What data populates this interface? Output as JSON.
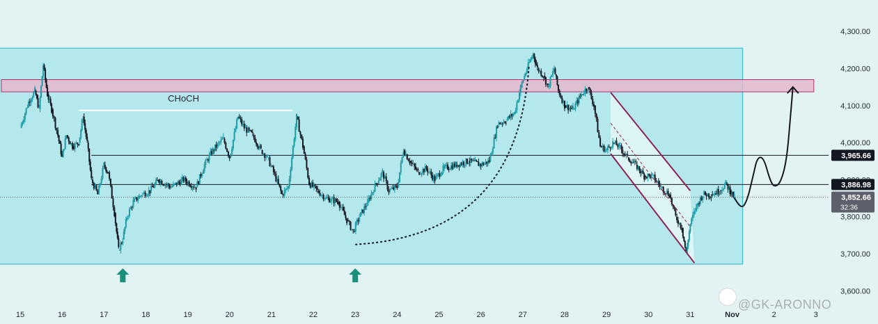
{
  "chart_data": {
    "type": "candlestick",
    "ylim": [
      3580,
      4360
    ],
    "y_ticks": [
      "4,300.00",
      "4,200.00",
      "4,100.00",
      "4,000.00",
      "3,900.00",
      "3,800.00",
      "3,700.00",
      "3,600.00"
    ],
    "y_tick_values": [
      4300,
      4200,
      4100,
      4000,
      3900,
      3800,
      3700,
      3600
    ],
    "x_ticks": [
      "15",
      "16",
      "17",
      "18",
      "19",
      "20",
      "21",
      "22",
      "23",
      "24",
      "25",
      "26",
      "27",
      "28",
      "29",
      "30",
      "31",
      "Nov",
      "2",
      "3"
    ],
    "x_bold_tick": "Nov",
    "price_path": [
      [
        15.0,
        4040
      ],
      [
        15.2,
        4110
      ],
      [
        15.35,
        4140
      ],
      [
        15.45,
        4090
      ],
      [
        15.55,
        4210
      ],
      [
        15.65,
        4130
      ],
      [
        15.75,
        4090
      ],
      [
        15.9,
        4020
      ],
      [
        16.0,
        3960
      ],
      [
        16.1,
        4020
      ],
      [
        16.25,
        3990
      ],
      [
        16.4,
        4000
      ],
      [
        16.5,
        4070
      ],
      [
        16.6,
        4000
      ],
      [
        16.7,
        3900
      ],
      [
        16.85,
        3860
      ],
      [
        17.0,
        3940
      ],
      [
        17.1,
        3920
      ],
      [
        17.25,
        3810
      ],
      [
        17.35,
        3710
      ],
      [
        17.45,
        3740
      ],
      [
        17.55,
        3800
      ],
      [
        17.7,
        3840
      ],
      [
        17.9,
        3860
      ],
      [
        18.1,
        3870
      ],
      [
        18.3,
        3900
      ],
      [
        18.6,
        3880
      ],
      [
        18.9,
        3900
      ],
      [
        19.2,
        3880
      ],
      [
        19.4,
        3940
      ],
      [
        19.6,
        3980
      ],
      [
        19.85,
        4010
      ],
      [
        20.0,
        3960
      ],
      [
        20.2,
        4070
      ],
      [
        20.35,
        4040
      ],
      [
        20.55,
        4020
      ],
      [
        20.75,
        3980
      ],
      [
        20.9,
        3960
      ],
      [
        21.05,
        3920
      ],
      [
        21.25,
        3860
      ],
      [
        21.4,
        3880
      ],
      [
        21.6,
        4070
      ],
      [
        21.75,
        3990
      ],
      [
        21.9,
        3890
      ],
      [
        22.1,
        3870
      ],
      [
        22.3,
        3850
      ],
      [
        22.6,
        3840
      ],
      [
        22.8,
        3790
      ],
      [
        22.95,
        3760
      ],
      [
        23.1,
        3800
      ],
      [
        23.3,
        3840
      ],
      [
        23.5,
        3890
      ],
      [
        23.65,
        3920
      ],
      [
        23.8,
        3870
      ],
      [
        24.0,
        3880
      ],
      [
        24.15,
        3980
      ],
      [
        24.3,
        3950
      ],
      [
        24.5,
        3920
      ],
      [
        24.7,
        3930
      ],
      [
        24.9,
        3900
      ],
      [
        25.1,
        3930
      ],
      [
        25.4,
        3940
      ],
      [
        25.7,
        3950
      ],
      [
        26.0,
        3940
      ],
      [
        26.2,
        3950
      ],
      [
        26.4,
        4050
      ],
      [
        26.6,
        4060
      ],
      [
        26.8,
        4080
      ],
      [
        26.95,
        4150
      ],
      [
        27.1,
        4200
      ],
      [
        27.25,
        4240
      ],
      [
        27.35,
        4200
      ],
      [
        27.5,
        4180
      ],
      [
        27.6,
        4150
      ],
      [
        27.75,
        4200
      ],
      [
        27.85,
        4140
      ],
      [
        28.0,
        4100
      ],
      [
        28.2,
        4090
      ],
      [
        28.4,
        4130
      ],
      [
        28.55,
        4150
      ],
      [
        28.7,
        4100
      ],
      [
        28.85,
        3990
      ],
      [
        29.0,
        3980
      ],
      [
        29.15,
        4000
      ],
      [
        29.3,
        3990
      ],
      [
        29.5,
        3960
      ],
      [
        29.7,
        3940
      ],
      [
        29.9,
        3910
      ],
      [
        30.1,
        3910
      ],
      [
        30.3,
        3880
      ],
      [
        30.5,
        3860
      ],
      [
        30.65,
        3800
      ],
      [
        30.8,
        3770
      ],
      [
        30.9,
        3700
      ],
      [
        31.0,
        3780
      ],
      [
        31.15,
        3830
      ],
      [
        31.3,
        3860
      ],
      [
        31.5,
        3860
      ],
      [
        31.7,
        3870
      ],
      [
        31.85,
        3890
      ],
      [
        31.95,
        3870
      ],
      [
        32.05,
        3852.66
      ]
    ],
    "horizontal_levels": [
      {
        "value": 3965.66,
        "label": "3,965.66",
        "tag_color": "#131722"
      },
      {
        "value": 3886.98,
        "label": "3,886.98",
        "tag_color": "#131722"
      }
    ],
    "current_price": {
      "value": 3852.66,
      "label": "3,852.66",
      "countdown": "32:36",
      "tag_color": "#5d606b"
    },
    "range_box": {
      "x_start": 14.5,
      "x_end": 32.25,
      "y_low": 3672,
      "y_high": 4255,
      "color": "#a4e4ea"
    },
    "resistance_zone": {
      "x_start": 14.55,
      "x_end": 33.95,
      "y_low": 4137,
      "y_high": 4170,
      "color": "#e6b7ce"
    },
    "choch_line": {
      "x_start": 16.4,
      "x_end": 21.5,
      "value": 4087
    },
    "descending_channel": {
      "upper": [
        [
          29.1,
          4135
        ],
        [
          31.0,
          3870
        ]
      ],
      "lower": [
        [
          29.1,
          3970
        ],
        [
          31.1,
          3675
        ]
      ]
    },
    "projection_path": [
      [
        32.05,
        3852
      ],
      [
        32.2,
        3820
      ],
      [
        32.35,
        3840
      ],
      [
        32.5,
        3910
      ],
      [
        32.6,
        3960
      ],
      [
        32.75,
        3960
      ],
      [
        32.9,
        3900
      ],
      [
        33.0,
        3880
      ],
      [
        33.15,
        3890
      ],
      [
        33.3,
        3950
      ],
      [
        33.4,
        4080
      ],
      [
        33.45,
        4150
      ]
    ],
    "curve_from": [
      23.0,
      3725
    ],
    "curve_to": [
      27.15,
      4210
    ],
    "up_arrows": [
      17.45,
      23.0
    ],
    "annotations": [
      {
        "text": "CHoCH",
        "x": 18.9,
        "value": 4100
      }
    ]
  },
  "watermark": {
    "text": "@GK-ARONNO",
    "logo": "sparkle-logo-icon"
  },
  "colors": {
    "background": "#e3f3f3",
    "up_candle": "#1f9ba6",
    "down_candle": "#131722",
    "arrow": "#1a8f7a",
    "channel": "#8b2156"
  }
}
